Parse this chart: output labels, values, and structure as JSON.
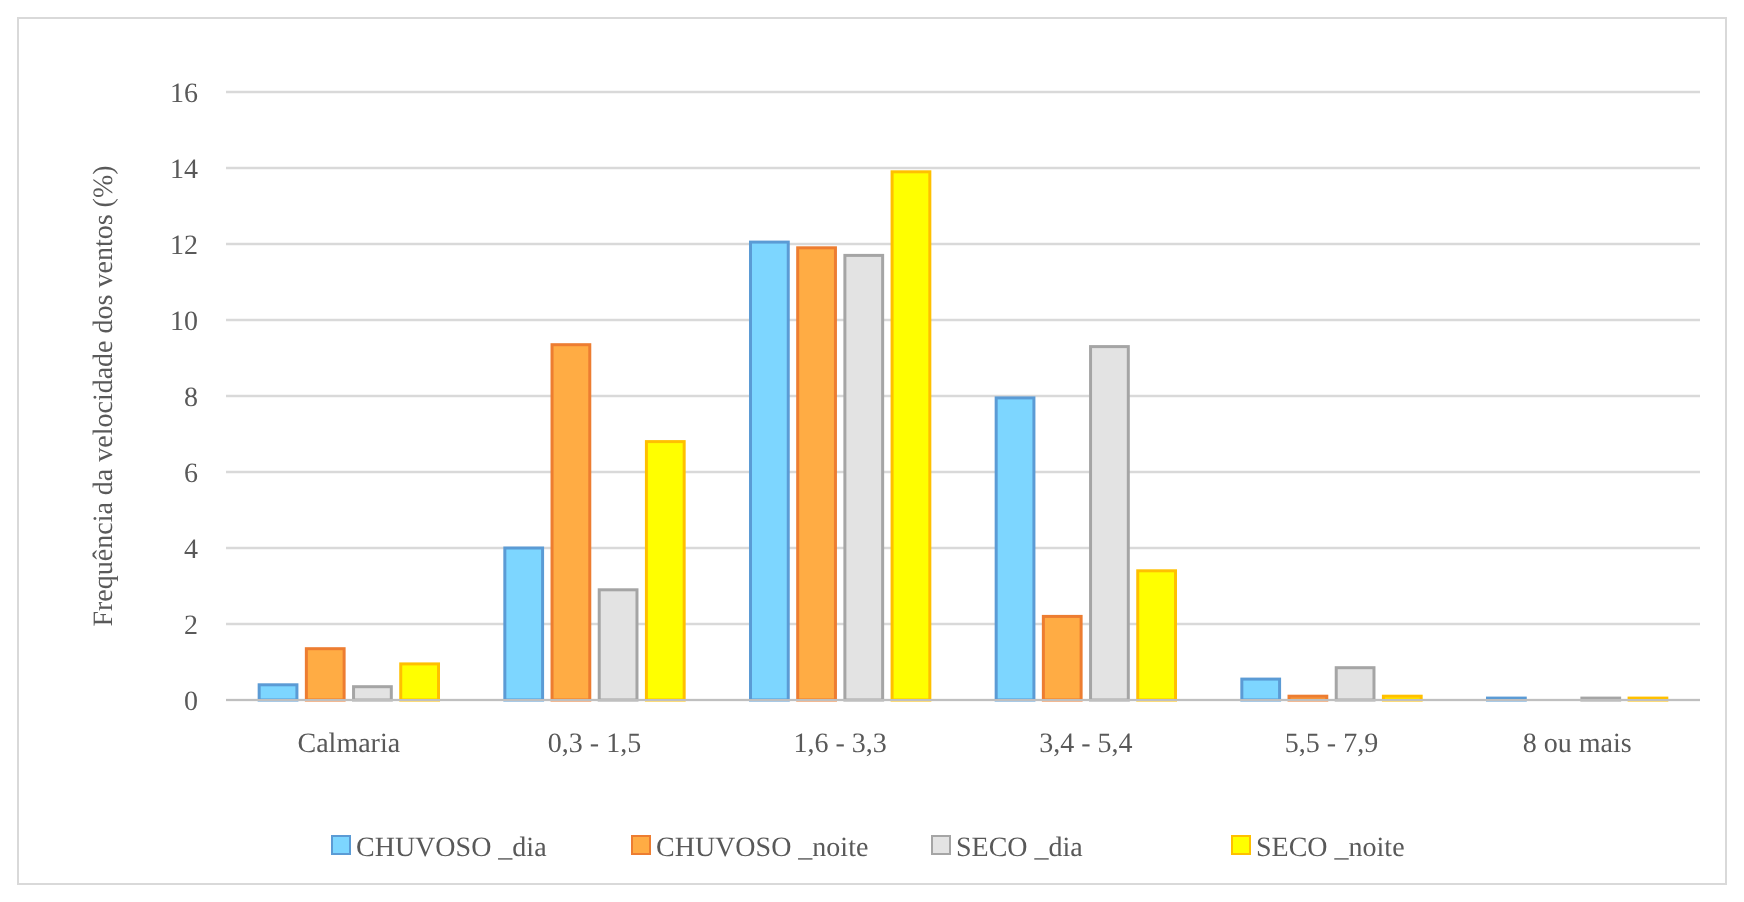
{
  "chart_data": {
    "type": "bar",
    "ylabel": "Frequência da velocidade dos ventos (%)",
    "categories": [
      "Calmaria",
      "0,3 - 1,5",
      "1,6 - 3,3",
      "3,4 - 5,4",
      "5,5 - 7,9",
      "8 ou mais"
    ],
    "series": [
      {
        "name": "CHUVOSO _dia",
        "color": "#5b9bd5",
        "values": [
          0.4,
          4.0,
          12.05,
          7.95,
          0.55,
          0.05
        ]
      },
      {
        "name": "CHUVOSO _noite",
        "color": "#ed7d31",
        "values": [
          1.35,
          9.35,
          11.9,
          2.2,
          0.1,
          0
        ]
      },
      {
        "name": "SECO _dia",
        "color": "#a5a5a5",
        "values": [
          0.35,
          2.9,
          11.7,
          9.3,
          0.85,
          0.05
        ]
      },
      {
        "name": "SECO _noite",
        "color": "#ffc000",
        "values": [
          0.95,
          6.8,
          13.9,
          3.4,
          0.1,
          0.05
        ]
      }
    ],
    "ylim": [
      0,
      16
    ],
    "yticks": [
      0,
      2,
      4,
      6,
      8,
      10,
      12,
      14,
      16
    ],
    "grid": "y",
    "legend": "bottom"
  }
}
